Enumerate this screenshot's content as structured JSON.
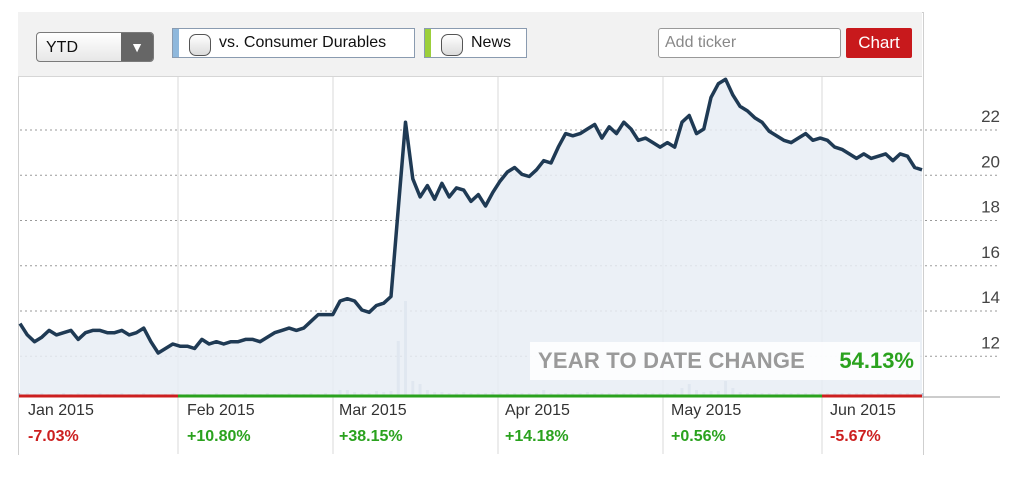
{
  "toolbar": {
    "period": "YTD",
    "compare_label": "vs. Consumer Durables",
    "news_label": "News",
    "ticker_placeholder": "Add ticker",
    "chart_button": "Chart"
  },
  "colors": {
    "line": "#1f3a54",
    "fill": "#e8edf5",
    "volume": "#b4c2d4",
    "positive": "#2aa21e",
    "negative": "#cc1f1f",
    "compare_accent": "#8fb8dc",
    "news_accent": "#9ccf3b",
    "button": "#c8191c"
  },
  "ytd": {
    "label": "YEAR TO DATE CHANGE",
    "value": "54.13%"
  },
  "months": [
    {
      "label": "Jan 2015",
      "change": "-7.03%",
      "sign": "negative"
    },
    {
      "label": "Feb 2015",
      "change": "+10.80%",
      "sign": "positive"
    },
    {
      "label": "Mar 2015",
      "change": "+38.15%",
      "sign": "positive"
    },
    {
      "label": "Apr 2015",
      "change": "+14.18%",
      "sign": "positive"
    },
    {
      "label": "May 2015",
      "change": "+0.56%",
      "sign": "positive"
    },
    {
      "label": "Jun 2015",
      "change": "-5.67%",
      "sign": "negative"
    }
  ],
  "chart_data": {
    "type": "line",
    "title": "",
    "xlabel": "",
    "ylabel": "",
    "ylim": [
      10.2,
      24.3
    ],
    "y_ticks": [
      "12",
      "14",
      "16",
      "18",
      "20",
      "22"
    ],
    "x_ticks": [
      "Jan 2015",
      "Feb 2015",
      "Mar 2015",
      "Apr 2015",
      "May 2015",
      "Jun 2015"
    ],
    "grid": true,
    "series": [
      {
        "values": [
          13.4,
          12.9,
          12.6,
          12.8,
          13.1,
          12.9,
          13.0,
          13.1,
          12.7,
          13.0,
          13.1,
          13.1,
          13.0,
          13.0,
          13.1,
          12.9,
          13.0,
          13.2,
          12.6,
          12.1,
          12.3,
          12.5,
          12.4,
          12.4,
          12.3,
          12.7,
          12.5,
          12.6,
          12.5,
          12.6,
          12.6,
          12.7,
          12.7,
          12.6,
          12.8,
          13.0,
          13.1,
          13.2,
          13.1,
          13.2,
          13.5,
          13.8,
          13.8,
          13.8,
          14.4,
          14.5,
          14.4,
          14.0,
          13.9,
          14.2,
          14.3,
          14.6,
          18.5,
          22.3,
          19.8,
          19.0,
          19.5,
          18.9,
          19.6,
          19.0,
          19.4,
          19.3,
          18.8,
          19.1,
          18.6,
          19.2,
          19.7,
          20.1,
          20.3,
          20.0,
          19.9,
          20.2,
          20.6,
          20.5,
          21.2,
          21.8,
          21.7,
          21.8,
          22.0,
          22.2,
          21.6,
          22.1,
          21.8,
          22.3,
          22.0,
          21.5,
          21.6,
          21.4,
          21.2,
          21.4,
          21.2,
          22.3,
          22.6,
          21.8,
          22.0,
          23.4,
          24.0,
          24.2,
          23.5,
          23.0,
          22.8,
          22.5,
          22.3,
          21.9,
          21.7,
          21.5,
          21.4,
          21.6,
          21.8,
          21.5,
          21.6,
          21.5,
          21.2,
          21.1,
          20.9,
          20.7,
          20.9,
          20.7,
          20.8,
          20.9,
          20.6,
          20.9,
          20.8,
          20.3,
          20.2
        ],
        "monthly_change": [
          "-7.03%",
          "+10.80%",
          "+38.15%",
          "+14.18%",
          "+0.56%",
          "-5.67%"
        ]
      }
    ],
    "volume": [
      0.3,
      0.3,
      0.2,
      0.3,
      0.2,
      0.2,
      0.3,
      0.2,
      0.3,
      0.2,
      0.2,
      0.3,
      0.2,
      0.2,
      0.3,
      0.2,
      0.2,
      0.3,
      0.2,
      0.2,
      0.2,
      0.3,
      0.2,
      0.2,
      0.3,
      0.2,
      0.2,
      0.3,
      0.2,
      0.2,
      0.2,
      0.3,
      0.2,
      0.2,
      0.3,
      0.2,
      0.2,
      0.3,
      0.2,
      0.2,
      0.3,
      0.2,
      0.3,
      0.2,
      0.6,
      0.6,
      0.4,
      0.3,
      0.3,
      0.5,
      0.4,
      0.5,
      5.5,
      9.5,
      1.5,
      1.2,
      0.6,
      0.4,
      0.4,
      0.3,
      0.3,
      0.4,
      0.3,
      0.3,
      0.3,
      0.4,
      0.3,
      0.3,
      0.3,
      0.3,
      0.3,
      0.3,
      0.6,
      0.3,
      0.3,
      0.3,
      0.3,
      0.3,
      0.4,
      0.3,
      0.3,
      0.3,
      0.3,
      0.3,
      0.3,
      0.3,
      0.3,
      0.3,
      0.3,
      0.3,
      0.3,
      0.8,
      1.2,
      0.6,
      0.4,
      0.5,
      0.5,
      1.5,
      0.8,
      0.4,
      0.3,
      0.3,
      0.3,
      0.3,
      0.3,
      0.3,
      0.3,
      0.3,
      0.3,
      0.3,
      0.3,
      0.3,
      0.3,
      0.3,
      0.3,
      0.3,
      0.3,
      0.3,
      0.3,
      0.3,
      0.3,
      0.3,
      0.3,
      0.3,
      0.3
    ]
  }
}
